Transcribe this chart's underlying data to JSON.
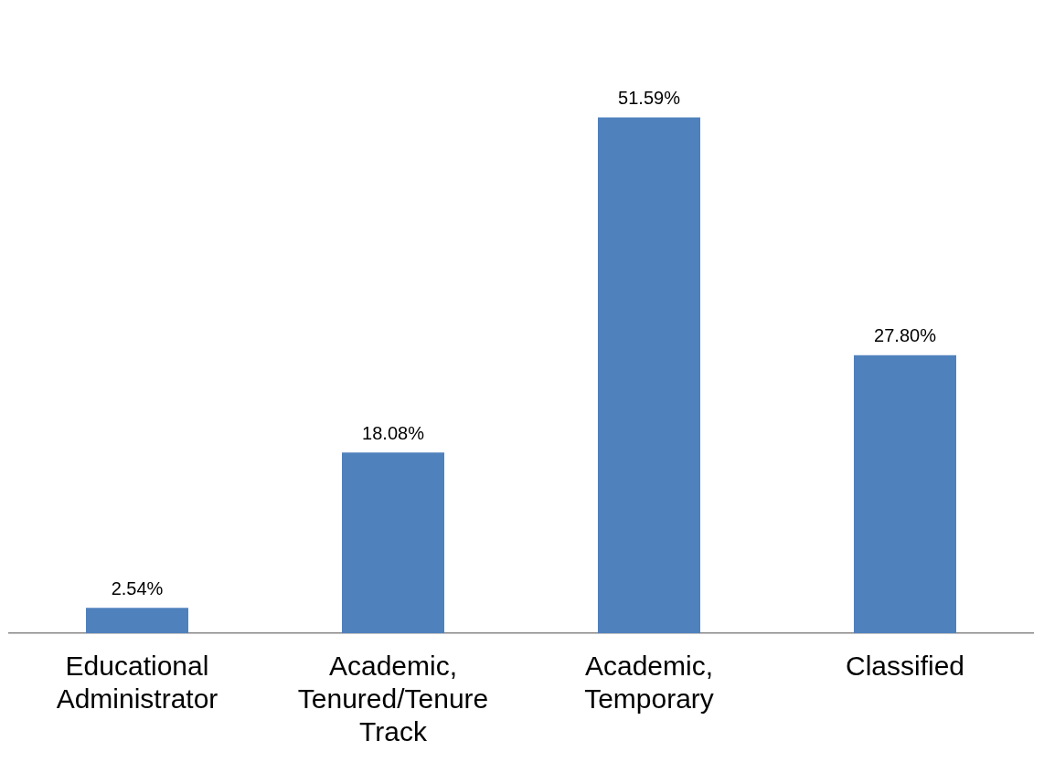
{
  "chart_data": {
    "type": "bar",
    "categories": [
      "Educational Administrator",
      "Academic, Tenured/Tenure Track",
      "Academic, Temporary",
      "Classified"
    ],
    "values": [
      2.54,
      18.08,
      51.59,
      27.8
    ],
    "value_labels": [
      "2.54%",
      "18.08%",
      "51.59%",
      "27.80%"
    ],
    "color": "#4f81bd",
    "grid": false,
    "legend": false
  }
}
